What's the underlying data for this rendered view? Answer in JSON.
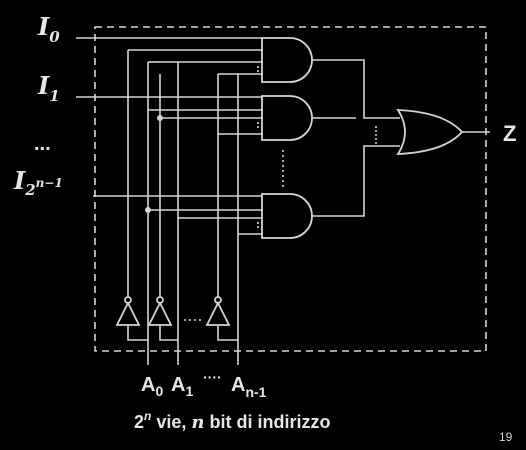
{
  "inputs": {
    "i0_base": "I",
    "i0_sub": "0",
    "i1_base": "I",
    "i1_sub": "1",
    "ellipsis": "...",
    "ilast_base": "I",
    "ilast_sub": "2",
    "ilast_sup": "n−1"
  },
  "output_label": "Z",
  "address_labels": {
    "a0_base": "A",
    "a0_sub": "0",
    "a1_base": "A",
    "a1_sub": "1",
    "adots": "····",
    "an_base": "A",
    "an_sub": "n-1"
  },
  "caption": {
    "pre": "2",
    "sup": "n",
    "mid": " vie, ",
    "n": "n",
    "post": " bit di indirizzo"
  },
  "page_number": "19",
  "colors": {
    "background": "#000000",
    "stroke": "#d4d4d4",
    "text": "#e6e6e6"
  }
}
